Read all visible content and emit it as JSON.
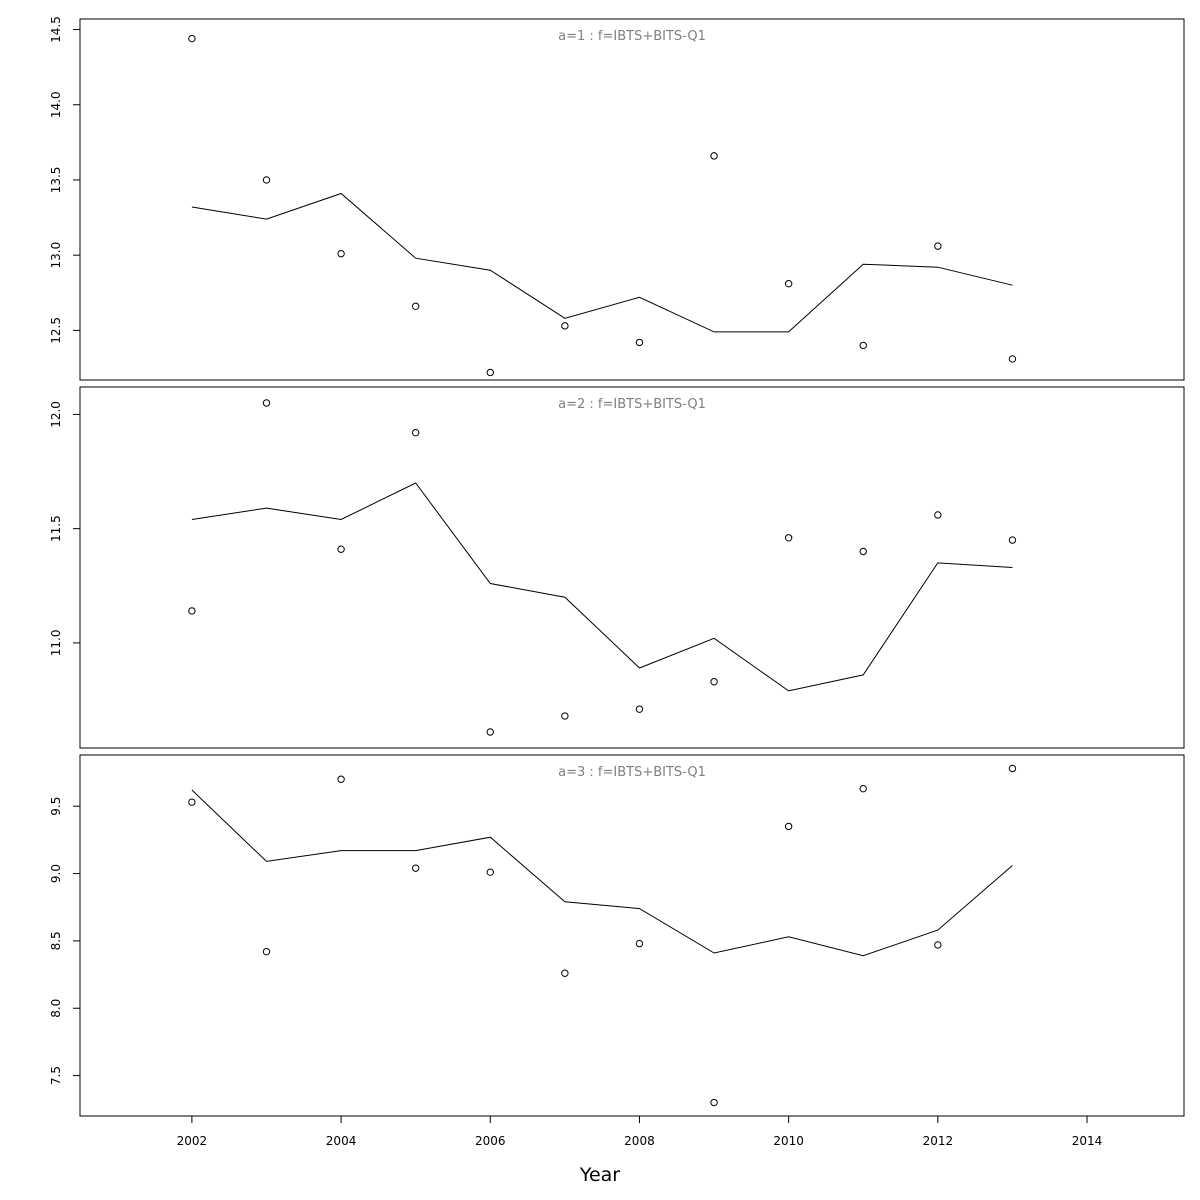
{
  "chart_data": {
    "type": "line",
    "xlabel": "Year",
    "x_ticks": [
      2002,
      2004,
      2006,
      2008,
      2010,
      2012,
      2014
    ],
    "xlim": [
      2000.5,
      2015.3
    ],
    "grid": false,
    "legend": "none",
    "panels": [
      {
        "strip_label": "a=1  :  f=IBTS+BITS-Q1",
        "ylim": [
          12.17,
          14.57
        ],
        "y_ticks": [
          12.5,
          13.0,
          13.5,
          14.0,
          14.5
        ],
        "y_tick_labels": [
          "12.5",
          "13.0",
          "13.5",
          "14.0",
          "14.5"
        ],
        "series": [
          {
            "style": "line",
            "x": [
              2002,
              2003,
              2004,
              2005,
              2006,
              2007,
              2008,
              2009,
              2010,
              2011,
              2012,
              2013
            ],
            "values": [
              13.32,
              13.24,
              13.41,
              12.98,
              12.9,
              12.58,
              12.72,
              12.49,
              12.49,
              12.94,
              12.92,
              12.8
            ]
          },
          {
            "style": "points",
            "x": [
              2002,
              2003,
              2004,
              2005,
              2006,
              2007,
              2008,
              2009,
              2010,
              2011,
              2012,
              2013
            ],
            "values": [
              14.44,
              13.5,
              13.01,
              12.66,
              12.22,
              12.53,
              12.42,
              13.66,
              12.81,
              12.4,
              13.06,
              12.31
            ]
          }
        ]
      },
      {
        "strip_label": "a=2  :  f=IBTS+BITS-Q1",
        "ylim": [
          10.54,
          12.12
        ],
        "y_ticks": [
          11.0,
          11.5,
          12.0
        ],
        "y_tick_labels": [
          "11.0",
          "11.5",
          "12.0"
        ],
        "series": [
          {
            "style": "line",
            "x": [
              2002,
              2003,
              2004,
              2005,
              2006,
              2007,
              2008,
              2009,
              2010,
              2011,
              2012,
              2013
            ],
            "values": [
              11.54,
              11.59,
              11.54,
              11.7,
              11.26,
              11.2,
              10.89,
              11.02,
              10.79,
              10.86,
              11.35,
              11.33
            ]
          },
          {
            "style": "points",
            "x": [
              2002,
              2003,
              2004,
              2005,
              2006,
              2007,
              2008,
              2009,
              2010,
              2011,
              2012,
              2013
            ],
            "values": [
              11.14,
              12.05,
              11.41,
              11.92,
              10.61,
              10.68,
              10.71,
              10.83,
              11.46,
              11.4,
              11.56,
              11.45
            ]
          }
        ]
      },
      {
        "strip_label": "a=3  :  f=IBTS+BITS-Q1",
        "ylim": [
          7.2,
          9.88
        ],
        "y_ticks": [
          7.5,
          8.0,
          8.5,
          9.0,
          9.5
        ],
        "y_tick_labels": [
          "7.5",
          "8.0",
          "8.5",
          "9.0",
          "9.5"
        ],
        "series": [
          {
            "style": "line",
            "x": [
              2002,
              2003,
              2004,
              2005,
              2006,
              2007,
              2008,
              2009,
              2010,
              2011,
              2012,
              2013
            ],
            "values": [
              9.62,
              9.09,
              9.17,
              9.17,
              9.27,
              8.79,
              8.74,
              8.41,
              8.53,
              8.39,
              8.58,
              9.06
            ]
          },
          {
            "style": "points",
            "x": [
              2002,
              2003,
              2004,
              2005,
              2006,
              2007,
              2008,
              2009,
              2010,
              2011,
              2012,
              2013
            ],
            "values": [
              9.53,
              8.42,
              9.7,
              9.04,
              9.01,
              8.26,
              8.48,
              7.3,
              9.35,
              9.63,
              8.47,
              9.78
            ]
          }
        ]
      }
    ]
  }
}
